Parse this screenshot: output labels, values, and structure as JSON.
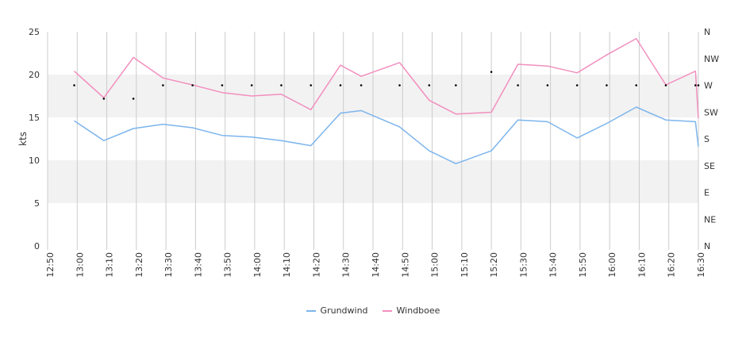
{
  "chart_data": {
    "type": "line",
    "ylabel": "kts",
    "ylim": [
      0,
      25
    ],
    "y_ticks": [
      "0",
      "5",
      "10",
      "15",
      "20",
      "25"
    ],
    "y2_labels": [
      "N",
      "NE",
      "E",
      "SE",
      "S",
      "SW",
      "W",
      "NW",
      "N"
    ],
    "x_tick_labels": [
      "12:50",
      "13:00",
      "13:10",
      "13:20",
      "13:30",
      "13:40",
      "13:50",
      "14:00",
      "14:10",
      "14:20",
      "14:30",
      "14:40",
      "14:50",
      "15:00",
      "15:10",
      "15:20",
      "15:30",
      "15:40",
      "15:50",
      "16:00",
      "16:10",
      "16:20",
      "16:30"
    ],
    "x_range": [
      "12:50",
      "16:30"
    ],
    "grid": true,
    "bands": [
      [
        0,
        5,
        "#ffffff"
      ],
      [
        5,
        10,
        "#f2f2f2"
      ],
      [
        10,
        15,
        "#ffffff"
      ],
      [
        15,
        20,
        "#f2f2f2"
      ],
      [
        20,
        25,
        "#ffffff"
      ]
    ],
    "legend_position": "bottom-center",
    "series": [
      {
        "name": "Grundwind",
        "color": "#7cb5ec",
        "points": [
          [
            "12:59",
            14.6
          ],
          [
            "13:09",
            12.3
          ],
          [
            "13:19",
            13.7
          ],
          [
            "13:29",
            14.2
          ],
          [
            "13:39",
            13.8
          ],
          [
            "13:49",
            12.9
          ],
          [
            "13:59",
            12.7
          ],
          [
            "14:09",
            12.3
          ],
          [
            "14:19",
            11.7
          ],
          [
            "14:29",
            15.5
          ],
          [
            "14:36",
            15.8
          ],
          [
            "14:49",
            13.9
          ],
          [
            "14:59",
            11.1
          ],
          [
            "15:08",
            9.6
          ],
          [
            "15:20",
            11.1
          ],
          [
            "15:29",
            14.7
          ],
          [
            "15:39",
            14.5
          ],
          [
            "15:49",
            12.6
          ],
          [
            "15:59",
            14.3
          ],
          [
            "16:09",
            16.2
          ],
          [
            "16:19",
            14.7
          ],
          [
            "16:29",
            14.5
          ],
          [
            "16:30",
            11.6
          ]
        ]
      },
      {
        "name": "Windboee",
        "color": "#f28fbe",
        "points": [
          [
            "12:59",
            20.4
          ],
          [
            "13:09",
            17.3
          ],
          [
            "13:19",
            22.0
          ],
          [
            "13:29",
            19.6
          ],
          [
            "13:39",
            18.8
          ],
          [
            "13:49",
            17.9
          ],
          [
            "13:59",
            17.5
          ],
          [
            "14:09",
            17.7
          ],
          [
            "14:19",
            15.9
          ],
          [
            "14:29",
            21.1
          ],
          [
            "14:36",
            19.8
          ],
          [
            "14:49",
            21.4
          ],
          [
            "14:59",
            17.0
          ],
          [
            "15:08",
            15.4
          ],
          [
            "15:20",
            15.6
          ],
          [
            "15:29",
            21.2
          ],
          [
            "15:39",
            21.0
          ],
          [
            "15:49",
            20.2
          ],
          [
            "15:59",
            22.3
          ],
          [
            "16:09",
            24.2
          ],
          [
            "16:19",
            18.8
          ],
          [
            "16:29",
            20.4
          ],
          [
            "16:30",
            14.9
          ]
        ]
      }
    ],
    "direction_points": [
      [
        "12:59",
        "W"
      ],
      [
        "13:09",
        "WSW"
      ],
      [
        "13:19",
        "WSW"
      ],
      [
        "13:29",
        "W"
      ],
      [
        "13:39",
        "W"
      ],
      [
        "13:49",
        "W"
      ],
      [
        "13:59",
        "W"
      ],
      [
        "14:09",
        "W"
      ],
      [
        "14:19",
        "W"
      ],
      [
        "14:29",
        "W"
      ],
      [
        "14:36",
        "W"
      ],
      [
        "14:49",
        "W"
      ],
      [
        "14:59",
        "W"
      ],
      [
        "15:08",
        "W"
      ],
      [
        "15:20",
        "WNW"
      ],
      [
        "15:29",
        "W"
      ],
      [
        "15:39",
        "W"
      ],
      [
        "15:49",
        "W"
      ],
      [
        "15:59",
        "W"
      ],
      [
        "16:09",
        "W"
      ],
      [
        "16:19",
        "W"
      ],
      [
        "16:29",
        "W"
      ],
      [
        "16:30",
        "W"
      ]
    ],
    "direction_color": "#000000"
  }
}
